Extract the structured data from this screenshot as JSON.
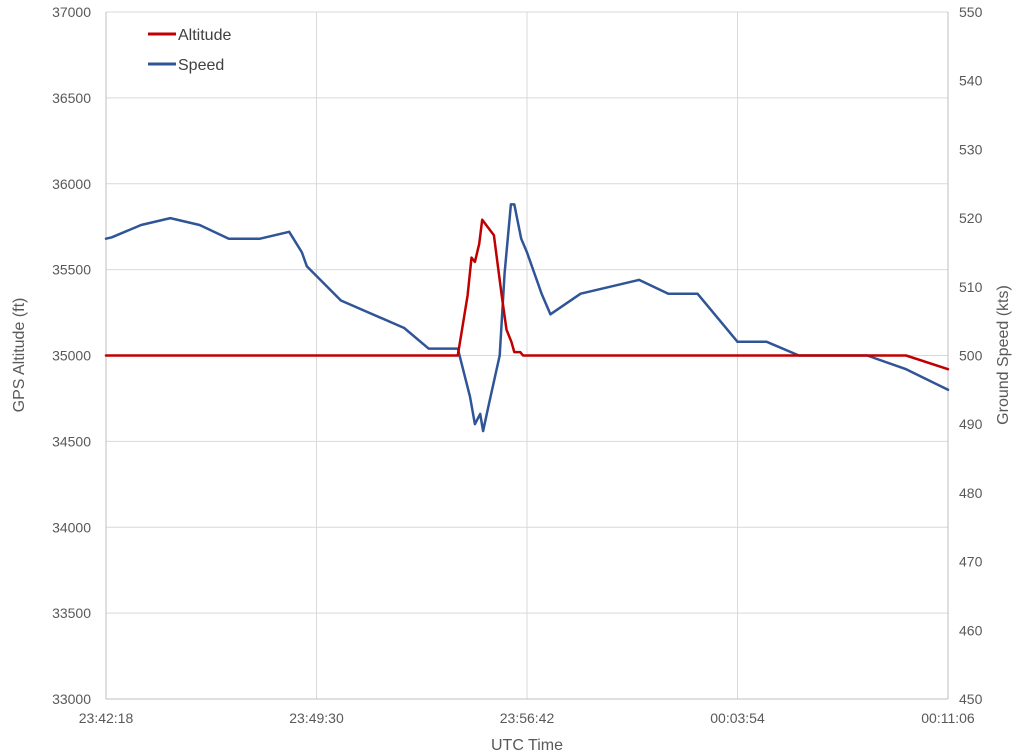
{
  "chart_data": {
    "type": "line",
    "xlabel": "UTC Time",
    "ylabel_left": "GPS Altitude (ft)",
    "ylabel_right": "Ground Speed (kts)",
    "x_tick_labels": [
      "23:42:18",
      "23:49:30",
      "23:56:42",
      "00:03:54",
      "00:11:06"
    ],
    "xlim": [
      "23:42:18",
      "00:11:06"
    ],
    "y_left_ticks": [
      33000,
      33500,
      34000,
      34500,
      35000,
      35500,
      36000,
      36500,
      37000
    ],
    "y_right_ticks": [
      450,
      460,
      470,
      480,
      490,
      500,
      510,
      520,
      530,
      540,
      550
    ],
    "ylim_left": [
      33000,
      37000
    ],
    "ylim_right": [
      450,
      550
    ],
    "grid": true,
    "legend_position": "top-left",
    "series": [
      {
        "name": "Altitude",
        "axis": "left",
        "color": "#C00000",
        "points": [
          [
            "23:42:18",
            35000
          ],
          [
            "23:54:20",
            35000
          ],
          [
            "23:54:40",
            35350
          ],
          [
            "23:54:48",
            35570
          ],
          [
            "23:54:55",
            35545
          ],
          [
            "23:55:04",
            35650
          ],
          [
            "23:55:10",
            35790
          ],
          [
            "23:55:34",
            35700
          ],
          [
            "23:55:50",
            35350
          ],
          [
            "23:56:00",
            35150
          ],
          [
            "23:56:10",
            35080
          ],
          [
            "23:56:16",
            35020
          ],
          [
            "23:56:28",
            35020
          ],
          [
            "23:56:34",
            35000
          ],
          [
            "00:09:40",
            35000
          ],
          [
            "00:11:06",
            34920
          ]
        ]
      },
      {
        "name": "Speed",
        "axis": "right",
        "color": "#2F5597",
        "points": [
          [
            "23:42:18",
            517
          ],
          [
            "23:42:30",
            517.2
          ],
          [
            "23:43:30",
            519
          ],
          [
            "23:44:30",
            520
          ],
          [
            "23:45:30",
            519
          ],
          [
            "23:46:30",
            517
          ],
          [
            "23:47:34",
            517
          ],
          [
            "23:48:34",
            518
          ],
          [
            "23:49:00",
            515
          ],
          [
            "23:49:10",
            513
          ],
          [
            "23:50:20",
            508
          ],
          [
            "23:52:30",
            504
          ],
          [
            "23:53:20",
            501
          ],
          [
            "23:54:20",
            501
          ],
          [
            "23:54:45",
            494
          ],
          [
            "23:54:55",
            490
          ],
          [
            "23:55:06",
            491.5
          ],
          [
            "23:55:12",
            489
          ],
          [
            "23:55:24",
            493
          ],
          [
            "23:55:46",
            500
          ],
          [
            "23:55:56",
            512
          ],
          [
            "23:56:09",
            522
          ],
          [
            "23:56:16",
            522
          ],
          [
            "23:56:30",
            517
          ],
          [
            "23:56:42",
            515
          ],
          [
            "23:57:12",
            509
          ],
          [
            "23:57:30",
            506
          ],
          [
            "23:58:32",
            509
          ],
          [
            "24:00:32",
            511
          ],
          [
            "24:01:32",
            509
          ],
          [
            "24:02:32",
            509
          ],
          [
            "24:03:54",
            502
          ],
          [
            "24:04:54",
            502
          ],
          [
            "24:06:00",
            500
          ],
          [
            "24:08:20",
            500
          ],
          [
            "24:09:40",
            498
          ],
          [
            "24:11:06",
            495
          ]
        ]
      }
    ]
  }
}
